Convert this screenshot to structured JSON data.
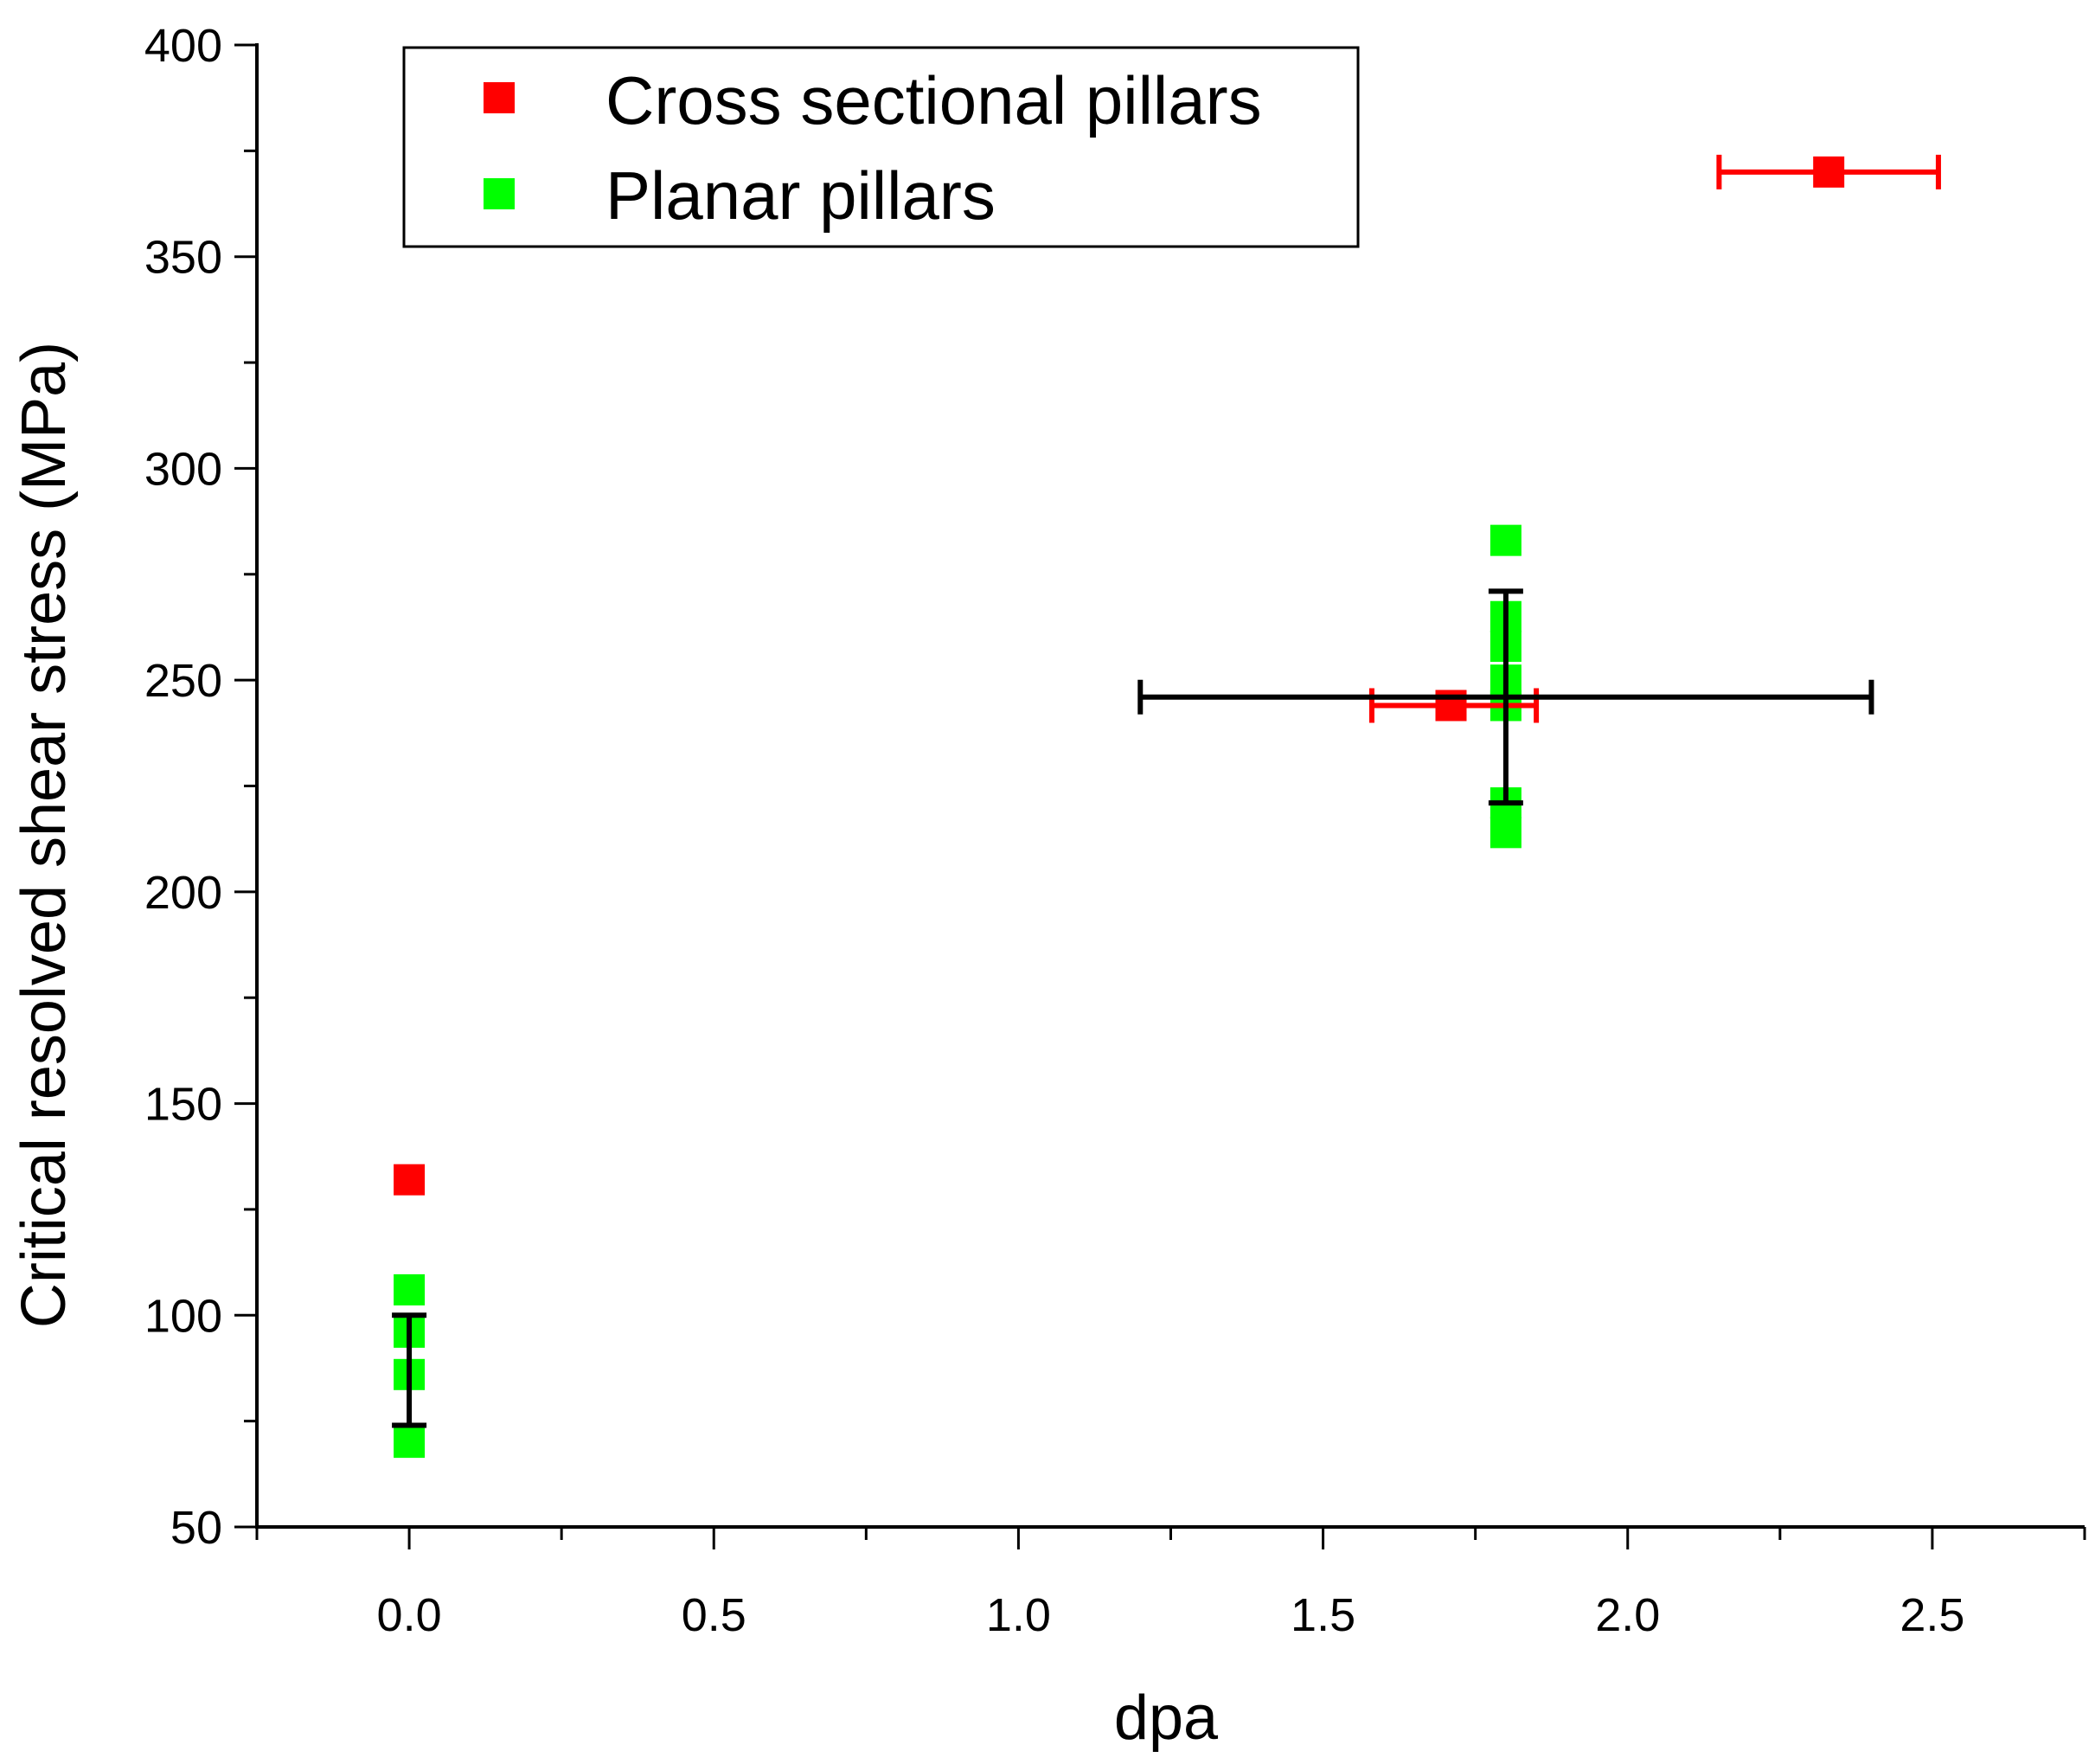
{
  "chart_data": {
    "type": "scatter",
    "title": "",
    "xlabel": "dpa",
    "ylabel": "Critical resolved shear stress (MPa)",
    "xlim": [
      -0.25,
      2.75
    ],
    "ylim": [
      50,
      400
    ],
    "xticks": [
      0.0,
      0.5,
      1.0,
      1.5,
      2.0,
      2.5
    ],
    "xtick_labels": [
      "0.0",
      "0.5",
      "1.0",
      "1.5",
      "2.0",
      "2.5"
    ],
    "yticks": [
      50,
      100,
      150,
      200,
      250,
      300,
      350,
      400
    ],
    "ytick_labels": [
      "50",
      "100",
      "150",
      "200",
      "250",
      "300",
      "350",
      "400"
    ],
    "grid": false,
    "legend_position": "top-left",
    "series": [
      {
        "name": "Cross sectional pillars",
        "color": "#ff0000",
        "points": [
          {
            "x": 0.0,
            "y": 132
          },
          {
            "x": 1.71,
            "y": 244,
            "xerr_minus": 0.13,
            "xerr_plus": 0.14
          },
          {
            "x": 2.33,
            "y": 370,
            "xerr_minus": 0.18,
            "xerr_plus": 0.18
          }
        ]
      },
      {
        "name": "Planar pillars",
        "color": "#00ff00",
        "points": [
          {
            "x": 0.0,
            "y": 106
          },
          {
            "x": 0.0,
            "y": 96
          },
          {
            "x": 0.0,
            "y": 86
          },
          {
            "x": 0.0,
            "y": 70
          },
          {
            "x": 1.8,
            "y": 283
          },
          {
            "x": 1.8,
            "y": 265
          },
          {
            "x": 1.8,
            "y": 258
          },
          {
            "x": 1.8,
            "y": 250
          },
          {
            "x": 1.8,
            "y": 244
          },
          {
            "x": 1.8,
            "y": 221
          },
          {
            "x": 1.8,
            "y": 214
          }
        ]
      }
    ],
    "mean_errorbars": {
      "color": "#000000",
      "items": [
        {
          "x": 0.0,
          "y": 87,
          "yerr_minus": 13,
          "yerr_plus": 13
        },
        {
          "x": 1.8,
          "y": 246,
          "yerr_minus": 25,
          "yerr_plus": 25,
          "xerr_minus": 0.6,
          "xerr_plus": 0.6
        }
      ]
    }
  }
}
